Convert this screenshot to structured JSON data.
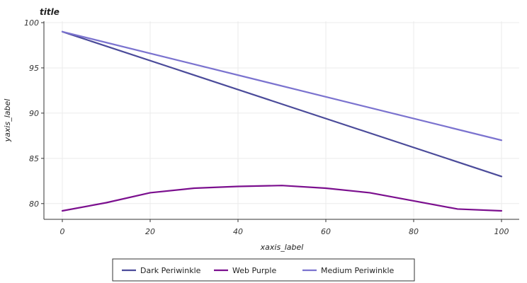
{
  "chart_data": {
    "type": "line",
    "title": "title",
    "xlabel": "xaxis_label",
    "ylabel": "yaxis_label",
    "xlim": [
      0,
      100
    ],
    "ylim": [
      79,
      100
    ],
    "x_ticks": [
      0,
      20,
      40,
      60,
      80,
      100
    ],
    "y_ticks": [
      80,
      85,
      90,
      95,
      100
    ],
    "grid": true,
    "legend_position": "bottom",
    "series": [
      {
        "name": "Dark Periwinkle",
        "color": "#4b4b9a",
        "x": [
          0,
          100
        ],
        "y": [
          99,
          83
        ]
      },
      {
        "name": "Web Purple",
        "color": "#7b0f8e",
        "x": [
          0,
          10,
          20,
          30,
          40,
          50,
          60,
          70,
          80,
          90,
          100
        ],
        "y": [
          79.2,
          80.1,
          81.2,
          81.7,
          81.9,
          82.0,
          81.7,
          81.2,
          80.3,
          79.4,
          79.2
        ]
      },
      {
        "name": "Medium Periwinkle",
        "color": "#7b73cf",
        "x": [
          0,
          100
        ],
        "y": [
          99,
          87
        ]
      }
    ]
  }
}
